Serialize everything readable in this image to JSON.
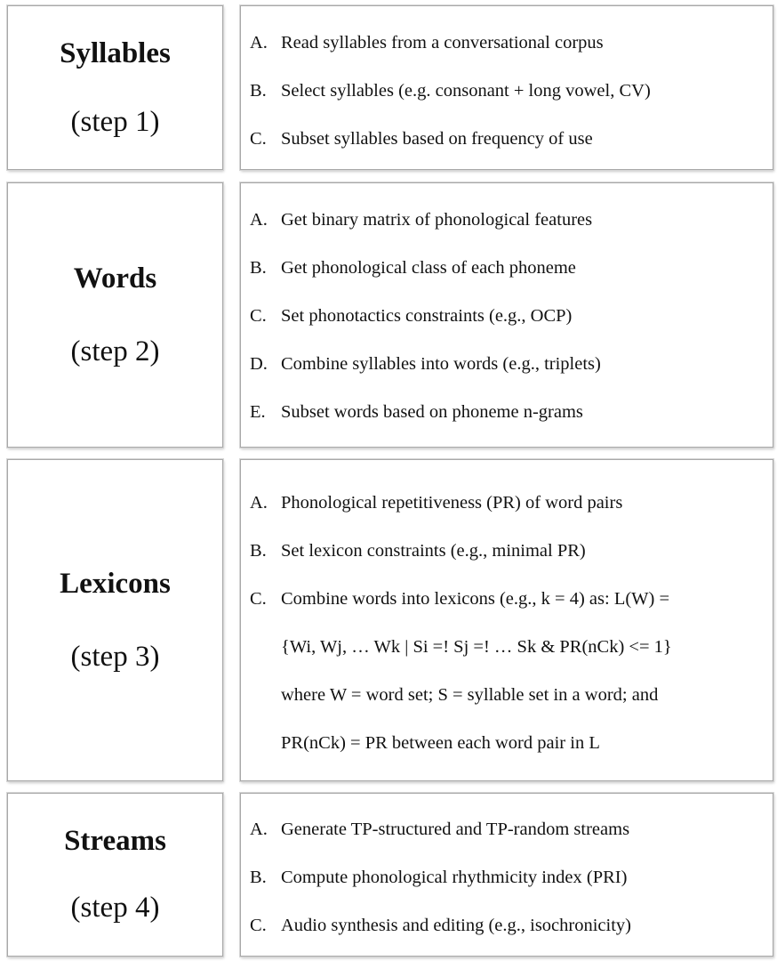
{
  "steps": [
    {
      "title": "Syllables",
      "subtitle": "(step 1)",
      "items": [
        {
          "letter": "A.",
          "text": "Read syllables from a conversational corpus"
        },
        {
          "letter": "B.",
          "text": "Select syllables (e.g. consonant + long vowel, CV)"
        },
        {
          "letter": "C.",
          "text": "Subset syllables based on frequency of use"
        }
      ]
    },
    {
      "title": "Words",
      "subtitle": "(step 2)",
      "items": [
        {
          "letter": "A.",
          "text": "Get binary matrix of phonological features"
        },
        {
          "letter": "B.",
          "text": "Get phonological class of each phoneme"
        },
        {
          "letter": "C.",
          "text": "Set phonotactics constraints (e.g., OCP)"
        },
        {
          "letter": "D.",
          "text": "Combine syllables into words (e.g., triplets)"
        },
        {
          "letter": "E.",
          "text": "Subset words based on phoneme n-grams"
        }
      ]
    },
    {
      "title": "Lexicons",
      "subtitle": "(step 3)",
      "items": [
        {
          "letter": "A.",
          "text": "Phonological repetitiveness (PR) of word pairs"
        },
        {
          "letter": "B.",
          "text": "Set lexicon constraints (e.g., minimal PR)"
        },
        {
          "letter": "C.",
          "text": "Combine words into lexicons (e.g., k = 4) as: L(W) ="
        },
        {
          "letter": "",
          "text": "{Wi, Wj, … Wk | Si =! Sj =! … Sk & PR(nCk) <= 1}"
        },
        {
          "letter": "",
          "text": "where W = word set; S = syllable set in a word; and"
        },
        {
          "letter": "",
          "text": "PR(nCk) = PR between each word pair in L"
        }
      ]
    },
    {
      "title": "Streams",
      "subtitle": "(step 4)",
      "items": [
        {
          "letter": "A.",
          "text": "Generate TP-structured and TP-random streams"
        },
        {
          "letter": "B.",
          "text": "Compute phonological rhythmicity index (PRI)"
        },
        {
          "letter": "C.",
          "text": "Audio synthesis and editing (e.g., isochronicity)"
        }
      ]
    }
  ]
}
